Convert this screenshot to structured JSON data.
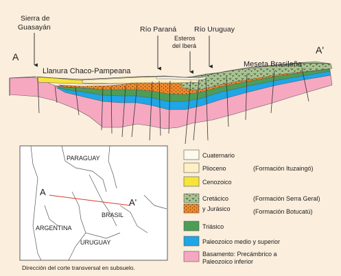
{
  "section": {
    "point_a": "A",
    "point_a_prime": "A'",
    "sierra_line1": "Sierra de",
    "sierra_line2": "Guasayán",
    "rio_parana": "Río Paraná",
    "esteros_line1": "Esteros",
    "esteros_line2": "del Iberá",
    "rio_uruguay": "Río Uruguay",
    "meseta": "Meseta Brasileña",
    "llanura": "Llanura Chaco-Pampeana"
  },
  "map": {
    "paraguay": "PARAGUAY",
    "argentina": "ARGENTINA",
    "brasil": "BRASIL",
    "uruguay": "URUGUAY",
    "point_a": "A",
    "point_a_prime": "A'",
    "caption": "Dirección del corte transversal en subsuelo."
  },
  "legend": [
    {
      "id": "cuaternario",
      "label": "Cuaternario",
      "color": "#fdf9ec"
    },
    {
      "id": "plioceno",
      "label": "Plioceno",
      "formation": "(Formación Ituzaingó)",
      "color": "#fdf0c4"
    },
    {
      "id": "cenozoico",
      "label": "Cenozoico",
      "color": "#f7e43a"
    },
    {
      "id": "cretacico",
      "label": "Cretácico",
      "formation": "(Formación Serra Geral)",
      "color": "#a9c291"
    },
    {
      "id": "jurasico",
      "label": "y Jurásico",
      "formation": "(Formación Botucatú)",
      "color": "#f08a2a"
    },
    {
      "id": "triasico",
      "label": "Triásico",
      "color": "#4d9d57"
    },
    {
      "id": "paleozoico",
      "label": "Paleozoico medio y superior",
      "color": "#1ea6e6"
    },
    {
      "id": "basamento",
      "label_line1": "Basamento: Precámbrico a",
      "label_line2": "Paleozoico inferior",
      "color": "#f6a8c1"
    }
  ]
}
